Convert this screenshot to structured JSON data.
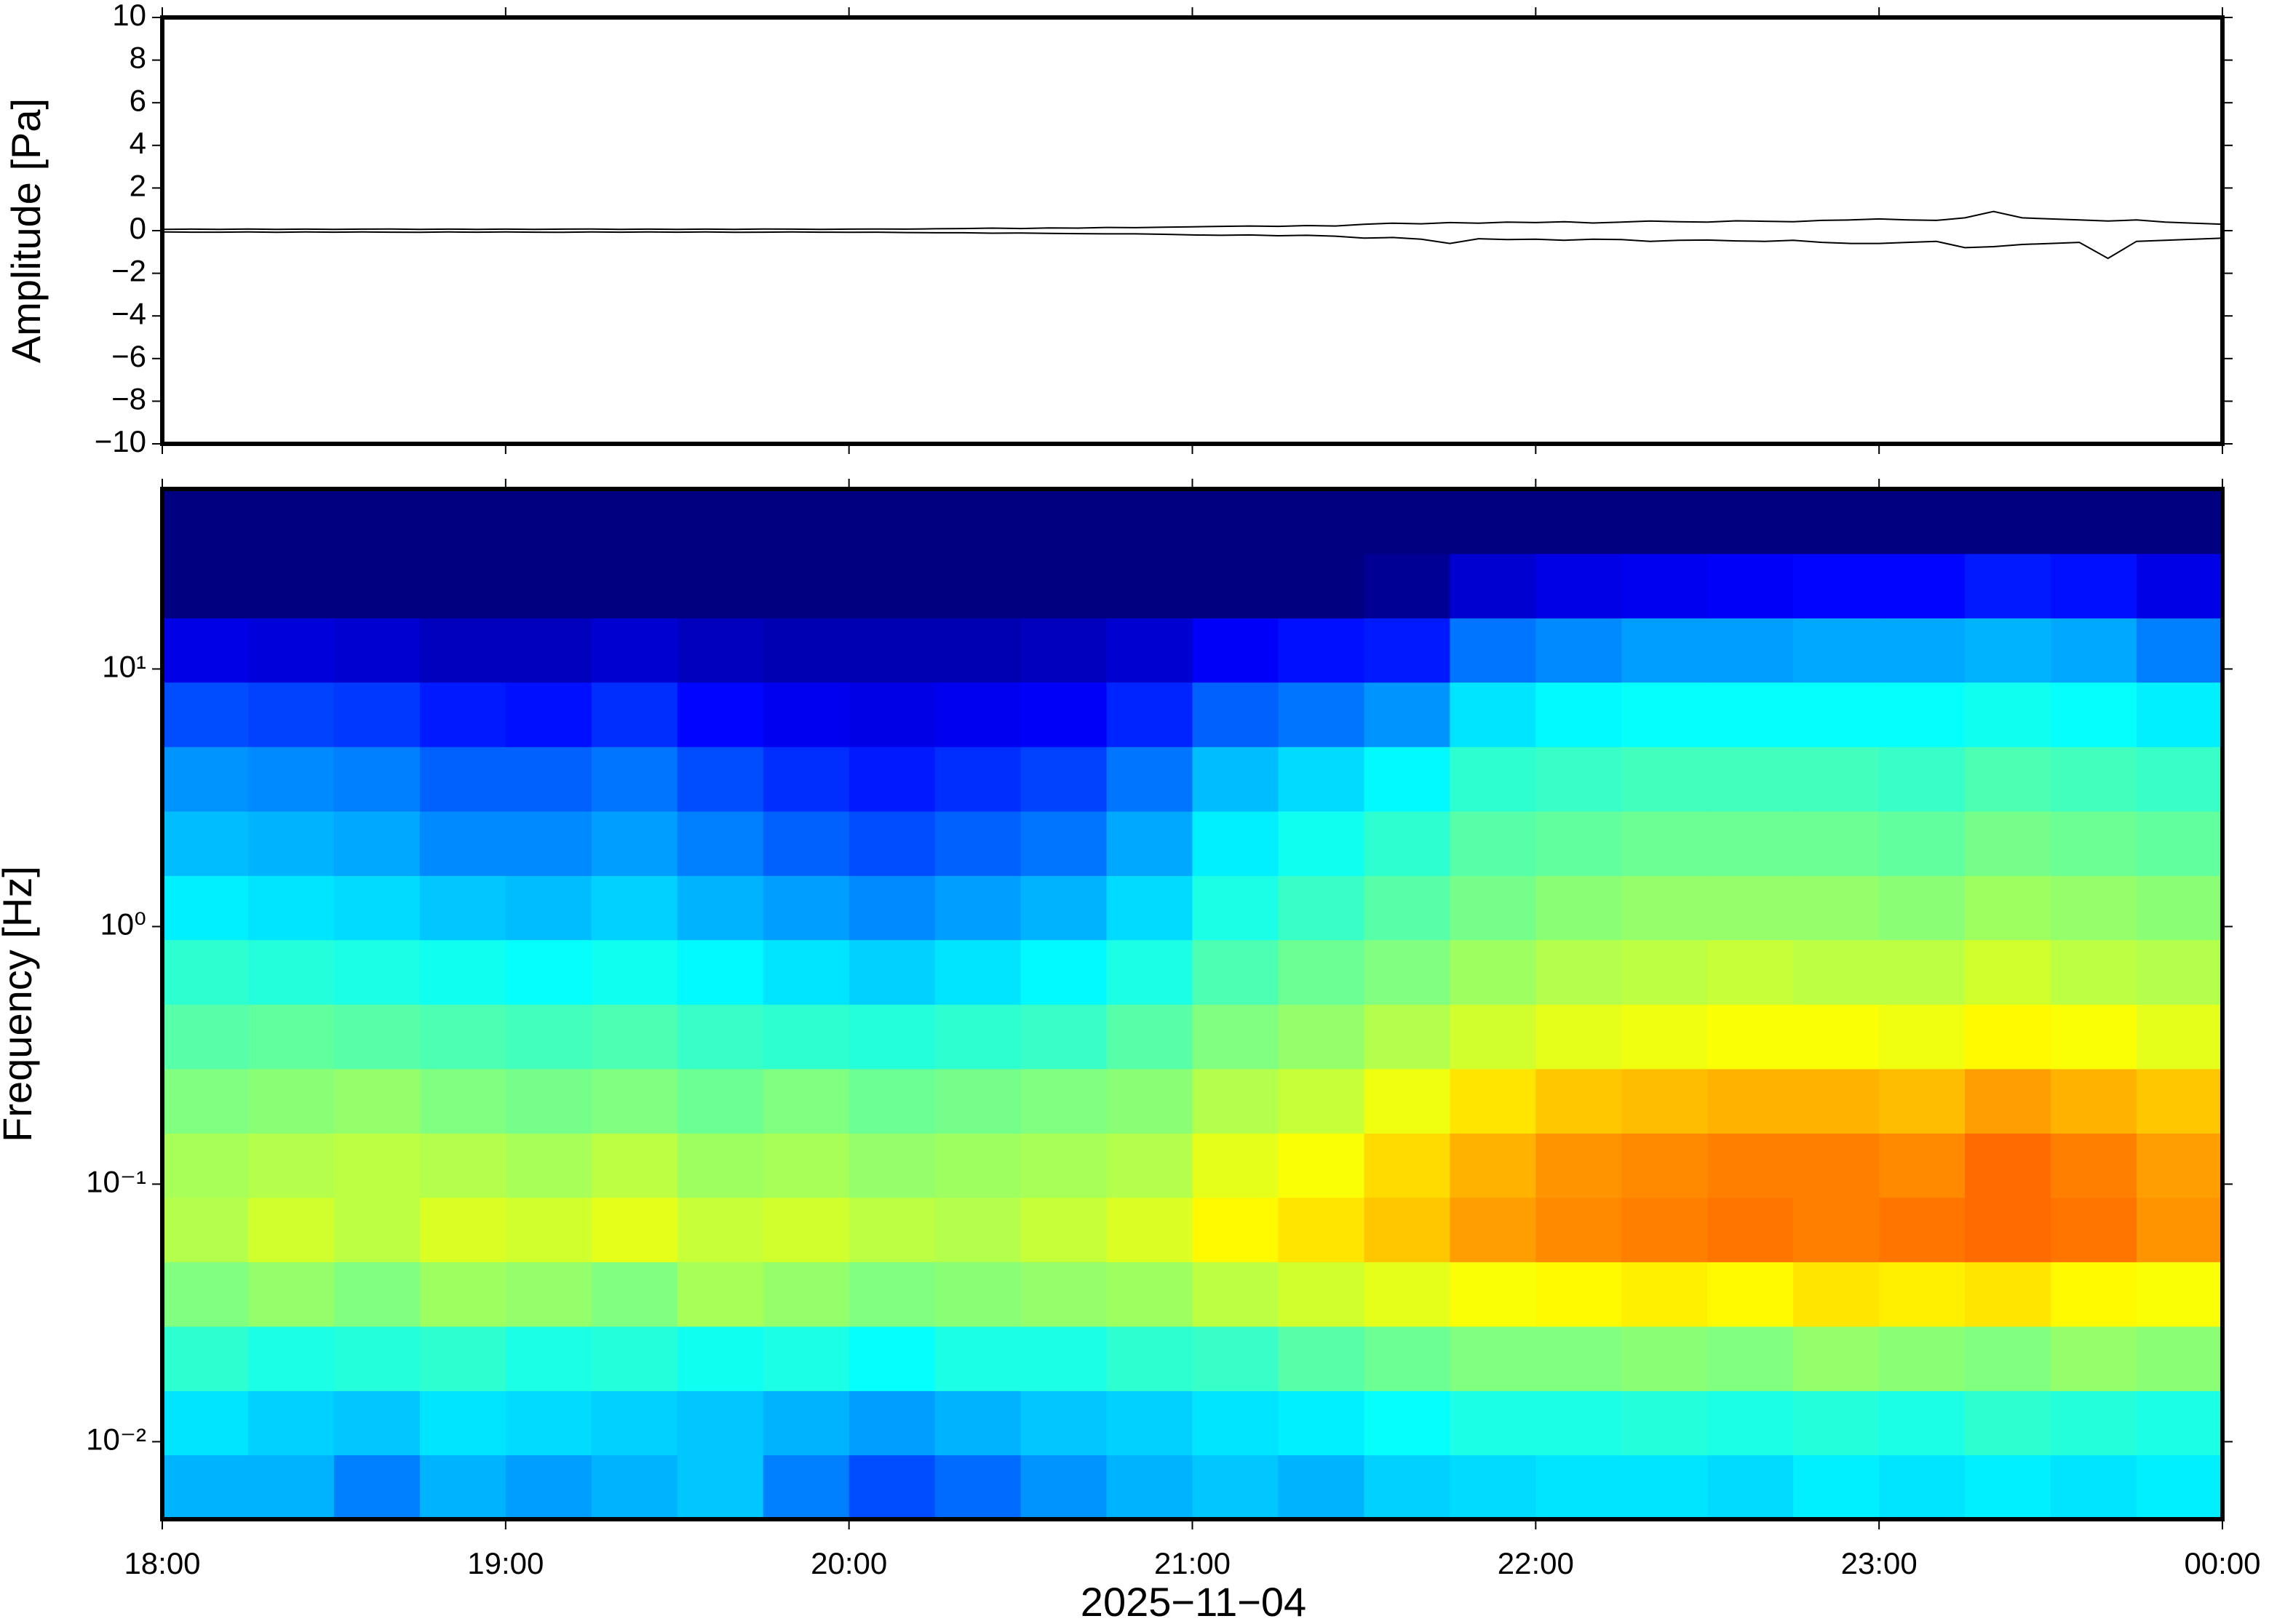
{
  "chart_data": [
    {
      "type": "line",
      "ylabel": "Amplitude [Pa]",
      "xlim": [
        "18:00",
        "00:00"
      ],
      "ylim": [
        -10,
        10
      ],
      "yticks": [
        {
          "value": -10,
          "label": "−10"
        },
        {
          "value": -8,
          "label": "−8"
        },
        {
          "value": -6,
          "label": "−6"
        },
        {
          "value": -4,
          "label": "−4"
        },
        {
          "value": -2,
          "label": "−2"
        },
        0,
        2,
        4,
        6,
        8,
        10
      ],
      "x": [
        "18:00",
        "18:05",
        "18:10",
        "18:15",
        "18:20",
        "18:25",
        "18:30",
        "18:35",
        "18:40",
        "18:45",
        "18:50",
        "18:55",
        "19:00",
        "19:05",
        "19:10",
        "19:15",
        "19:20",
        "19:25",
        "19:30",
        "19:35",
        "19:40",
        "19:45",
        "19:50",
        "19:55",
        "20:00",
        "20:05",
        "20:10",
        "20:15",
        "20:20",
        "20:25",
        "20:30",
        "20:35",
        "20:40",
        "20:45",
        "20:50",
        "20:55",
        "21:00",
        "21:05",
        "21:10",
        "21:15",
        "21:20",
        "21:25",
        "21:30",
        "21:35",
        "21:40",
        "21:45",
        "21:50",
        "21:55",
        "22:00",
        "22:05",
        "22:10",
        "22:15",
        "22:20",
        "22:25",
        "22:30",
        "22:35",
        "22:40",
        "22:45",
        "22:50",
        "22:55",
        "23:00",
        "23:05",
        "23:10",
        "23:15",
        "23:20",
        "23:25",
        "23:30",
        "23:35",
        "23:40",
        "23:45",
        "23:50",
        "23:55",
        "00:00"
      ],
      "series": [
        {
          "color": "#000000",
          "values": [
            0.06,
            0.07,
            0.06,
            0.08,
            0.06,
            0.07,
            0.06,
            0.07,
            0.08,
            0.06,
            0.07,
            0.06,
            0.07,
            0.06,
            0.07,
            0.08,
            0.06,
            0.07,
            0.06,
            0.07,
            0.06,
            0.08,
            0.07,
            0.06,
            0.07,
            0.08,
            0.07,
            0.09,
            0.1,
            0.12,
            0.1,
            0.13,
            0.12,
            0.15,
            0.14,
            0.16,
            0.18,
            0.2,
            0.22,
            0.2,
            0.24,
            0.22,
            0.3,
            0.35,
            0.32,
            0.38,
            0.35,
            0.4,
            0.38,
            0.42,
            0.36,
            0.4,
            0.45,
            0.42,
            0.4,
            0.46,
            0.44,
            0.42,
            0.48,
            0.5,
            0.55,
            0.5,
            0.48,
            0.6,
            0.9,
            0.6,
            0.55,
            0.5,
            0.45,
            0.5,
            0.4,
            0.35,
            0.3
          ]
        },
        {
          "color": "#000000",
          "values": [
            -0.06,
            -0.07,
            -0.07,
            -0.06,
            -0.08,
            -0.06,
            -0.07,
            -0.06,
            -0.07,
            -0.08,
            -0.06,
            -0.07,
            -0.06,
            -0.07,
            -0.08,
            -0.06,
            -0.07,
            -0.06,
            -0.07,
            -0.06,
            -0.08,
            -0.07,
            -0.06,
            -0.07,
            -0.08,
            -0.07,
            -0.09,
            -0.1,
            -0.1,
            -0.12,
            -0.11,
            -0.13,
            -0.14,
            -0.15,
            -0.15,
            -0.17,
            -0.2,
            -0.22,
            -0.2,
            -0.24,
            -0.22,
            -0.26,
            -0.35,
            -0.32,
            -0.4,
            -0.6,
            -0.38,
            -0.42,
            -0.4,
            -0.45,
            -0.4,
            -0.42,
            -0.5,
            -0.45,
            -0.44,
            -0.48,
            -0.5,
            -0.45,
            -0.55,
            -0.6,
            -0.6,
            -0.55,
            -0.5,
            -0.8,
            -0.75,
            -0.65,
            -0.6,
            -0.55,
            -1.3,
            -0.5,
            -0.45,
            -0.4,
            -0.35
          ]
        }
      ]
    },
    {
      "type": "heatmap",
      "ylabel": "Frequency [Hz]",
      "xlabel": "2025−11−04",
      "log_y": true,
      "colormap": "jet",
      "clim": [
        0,
        10
      ],
      "xlim": [
        "18:00",
        "00:00"
      ],
      "ylim": [
        0.005,
        50
      ],
      "xticks": [
        "18:00",
        "19:00",
        "20:00",
        "21:00",
        "22:00",
        "23:00",
        "00:00"
      ],
      "yticks": [
        {
          "value": 0.01,
          "label": "10⁻²"
        },
        {
          "value": 0.1,
          "label": "10⁻¹"
        },
        {
          "value": 1,
          "label": "10⁰"
        },
        {
          "value": 10,
          "label": "10¹"
        }
      ],
      "x_bins": [
        "18:00",
        "18:15",
        "18:30",
        "18:45",
        "19:00",
        "19:15",
        "19:30",
        "19:45",
        "20:00",
        "20:15",
        "20:30",
        "20:45",
        "21:00",
        "21:15",
        "21:30",
        "21:45",
        "22:00",
        "22:15",
        "22:30",
        "22:45",
        "23:00",
        "23:15",
        "23:30",
        "23:45",
        "00:00"
      ],
      "y_bins": [
        0.005,
        0.0089,
        0.0158,
        0.0281,
        0.05,
        0.089,
        0.158,
        0.281,
        0.5,
        0.89,
        1.58,
        2.81,
        5,
        8.9,
        15.8,
        28.1,
        50
      ],
      "values": [
        [
          3,
          3,
          2.5,
          3,
          2.8,
          3,
          3.2,
          2.5,
          2,
          2.3,
          2.7,
          3,
          3.2,
          3,
          3.3,
          3.4,
          3.5,
          3.5,
          3.4,
          3.6,
          3.5,
          3.6,
          3.5,
          3.6
        ],
        [
          3.5,
          3.3,
          3.2,
          3.5,
          3.4,
          3.3,
          3.2,
          3,
          2.8,
          3,
          3.2,
          3.3,
          3.5,
          3.6,
          3.8,
          4,
          4,
          4.1,
          4,
          4.1,
          4,
          4.2,
          4.1,
          4
        ],
        [
          4.2,
          4,
          4.1,
          4.2,
          4,
          4.1,
          3.9,
          4,
          3.8,
          4,
          4,
          4.2,
          4.3,
          4.6,
          4.8,
          5,
          5,
          5.1,
          5,
          5.2,
          5.1,
          5,
          5.2,
          5.1
        ],
        [
          5,
          5.2,
          5,
          5.3,
          5.2,
          5,
          5.4,
          5.2,
          5,
          5.1,
          5.2,
          5.3,
          5.6,
          5.8,
          6,
          6.2,
          6.3,
          6.4,
          6.3,
          6.5,
          6.4,
          6.5,
          6.3,
          6.2
        ],
        [
          5.5,
          5.8,
          5.6,
          5.9,
          5.8,
          6,
          5.7,
          5.8,
          5.6,
          5.5,
          5.7,
          5.9,
          6.3,
          6.5,
          6.8,
          7.2,
          7.4,
          7.5,
          7.6,
          7.5,
          7.6,
          7.7,
          7.6,
          7.3
        ],
        [
          5.4,
          5.5,
          5.6,
          5.5,
          5.4,
          5.6,
          5.3,
          5.4,
          5.2,
          5.3,
          5.4,
          5.5,
          6,
          6.2,
          6.6,
          7,
          7.3,
          7.4,
          7.5,
          7.5,
          7.4,
          7.7,
          7.5,
          7.2
        ],
        [
          5,
          5.1,
          5.2,
          5,
          4.9,
          5,
          4.8,
          5,
          4.8,
          4.9,
          5,
          5.1,
          5.5,
          5.7,
          6.1,
          6.5,
          6.8,
          6.9,
          7,
          7,
          6.9,
          7.2,
          7,
          6.8
        ],
        [
          4.6,
          4.7,
          4.6,
          4.5,
          4.4,
          4.5,
          4.3,
          4.2,
          4.1,
          4.2,
          4.3,
          4.6,
          5,
          5.2,
          5.5,
          5.8,
          6,
          6.1,
          6.2,
          6.2,
          6.1,
          6.3,
          6.2,
          6
        ],
        [
          4.2,
          4.1,
          4,
          3.9,
          3.8,
          3.9,
          3.7,
          3.5,
          3.3,
          3.5,
          3.7,
          4,
          4.5,
          4.8,
          5,
          5.3,
          5.5,
          5.6,
          5.7,
          5.6,
          5.6,
          5.8,
          5.6,
          5.5
        ],
        [
          3.6,
          3.5,
          3.4,
          3.2,
          3.1,
          3.3,
          3,
          2.8,
          2.6,
          2.8,
          3,
          3.4,
          4,
          4.3,
          4.6,
          4.9,
          5.1,
          5.2,
          5.2,
          5.2,
          5.1,
          5.3,
          5.2,
          5.1
        ],
        [
          3.1,
          3,
          2.9,
          2.6,
          2.6,
          2.8,
          2.5,
          2.2,
          2,
          2.2,
          2.4,
          2.9,
          3.6,
          3.9,
          4.2,
          4.6,
          4.7,
          4.8,
          4.8,
          4.8,
          4.7,
          4.9,
          4.8,
          4.7
        ],
        [
          2.7,
          2.6,
          2.5,
          2.2,
          2.2,
          2.4,
          2,
          1.7,
          1.5,
          1.7,
          1.9,
          2.4,
          3.1,
          3.4,
          3.7,
          4.2,
          4.3,
          4.4,
          4.4,
          4.4,
          4.3,
          4.5,
          4.4,
          4.3
        ],
        [
          2,
          1.9,
          1.8,
          1.5,
          1.4,
          1.7,
          1.3,
          1.1,
          1,
          1.1,
          1.2,
          1.6,
          2.2,
          2.4,
          2.7,
          3.5,
          3.7,
          3.8,
          3.8,
          3.8,
          3.8,
          3.9,
          3.8,
          3.6
        ],
        [
          1,
          0.9,
          0.8,
          0.6,
          0.6,
          0.8,
          0.6,
          0.5,
          0.5,
          0.5,
          0.6,
          0.8,
          1.2,
          1.4,
          1.5,
          2.4,
          2.6,
          2.8,
          2.8,
          2.9,
          2.9,
          3,
          2.9,
          2.5
        ],
        [
          0,
          0,
          0,
          0,
          0,
          0,
          0,
          0,
          0,
          0,
          0,
          0,
          0,
          0,
          0.2,
          0.8,
          1,
          1.1,
          1.2,
          1.3,
          1.3,
          1.5,
          1.4,
          1
        ],
        [
          0,
          0,
          0,
          0,
          0,
          0,
          0,
          0,
          0,
          0,
          0,
          0,
          0,
          0,
          0,
          0,
          0,
          0,
          0,
          0,
          0,
          0,
          0,
          0
        ]
      ]
    }
  ]
}
